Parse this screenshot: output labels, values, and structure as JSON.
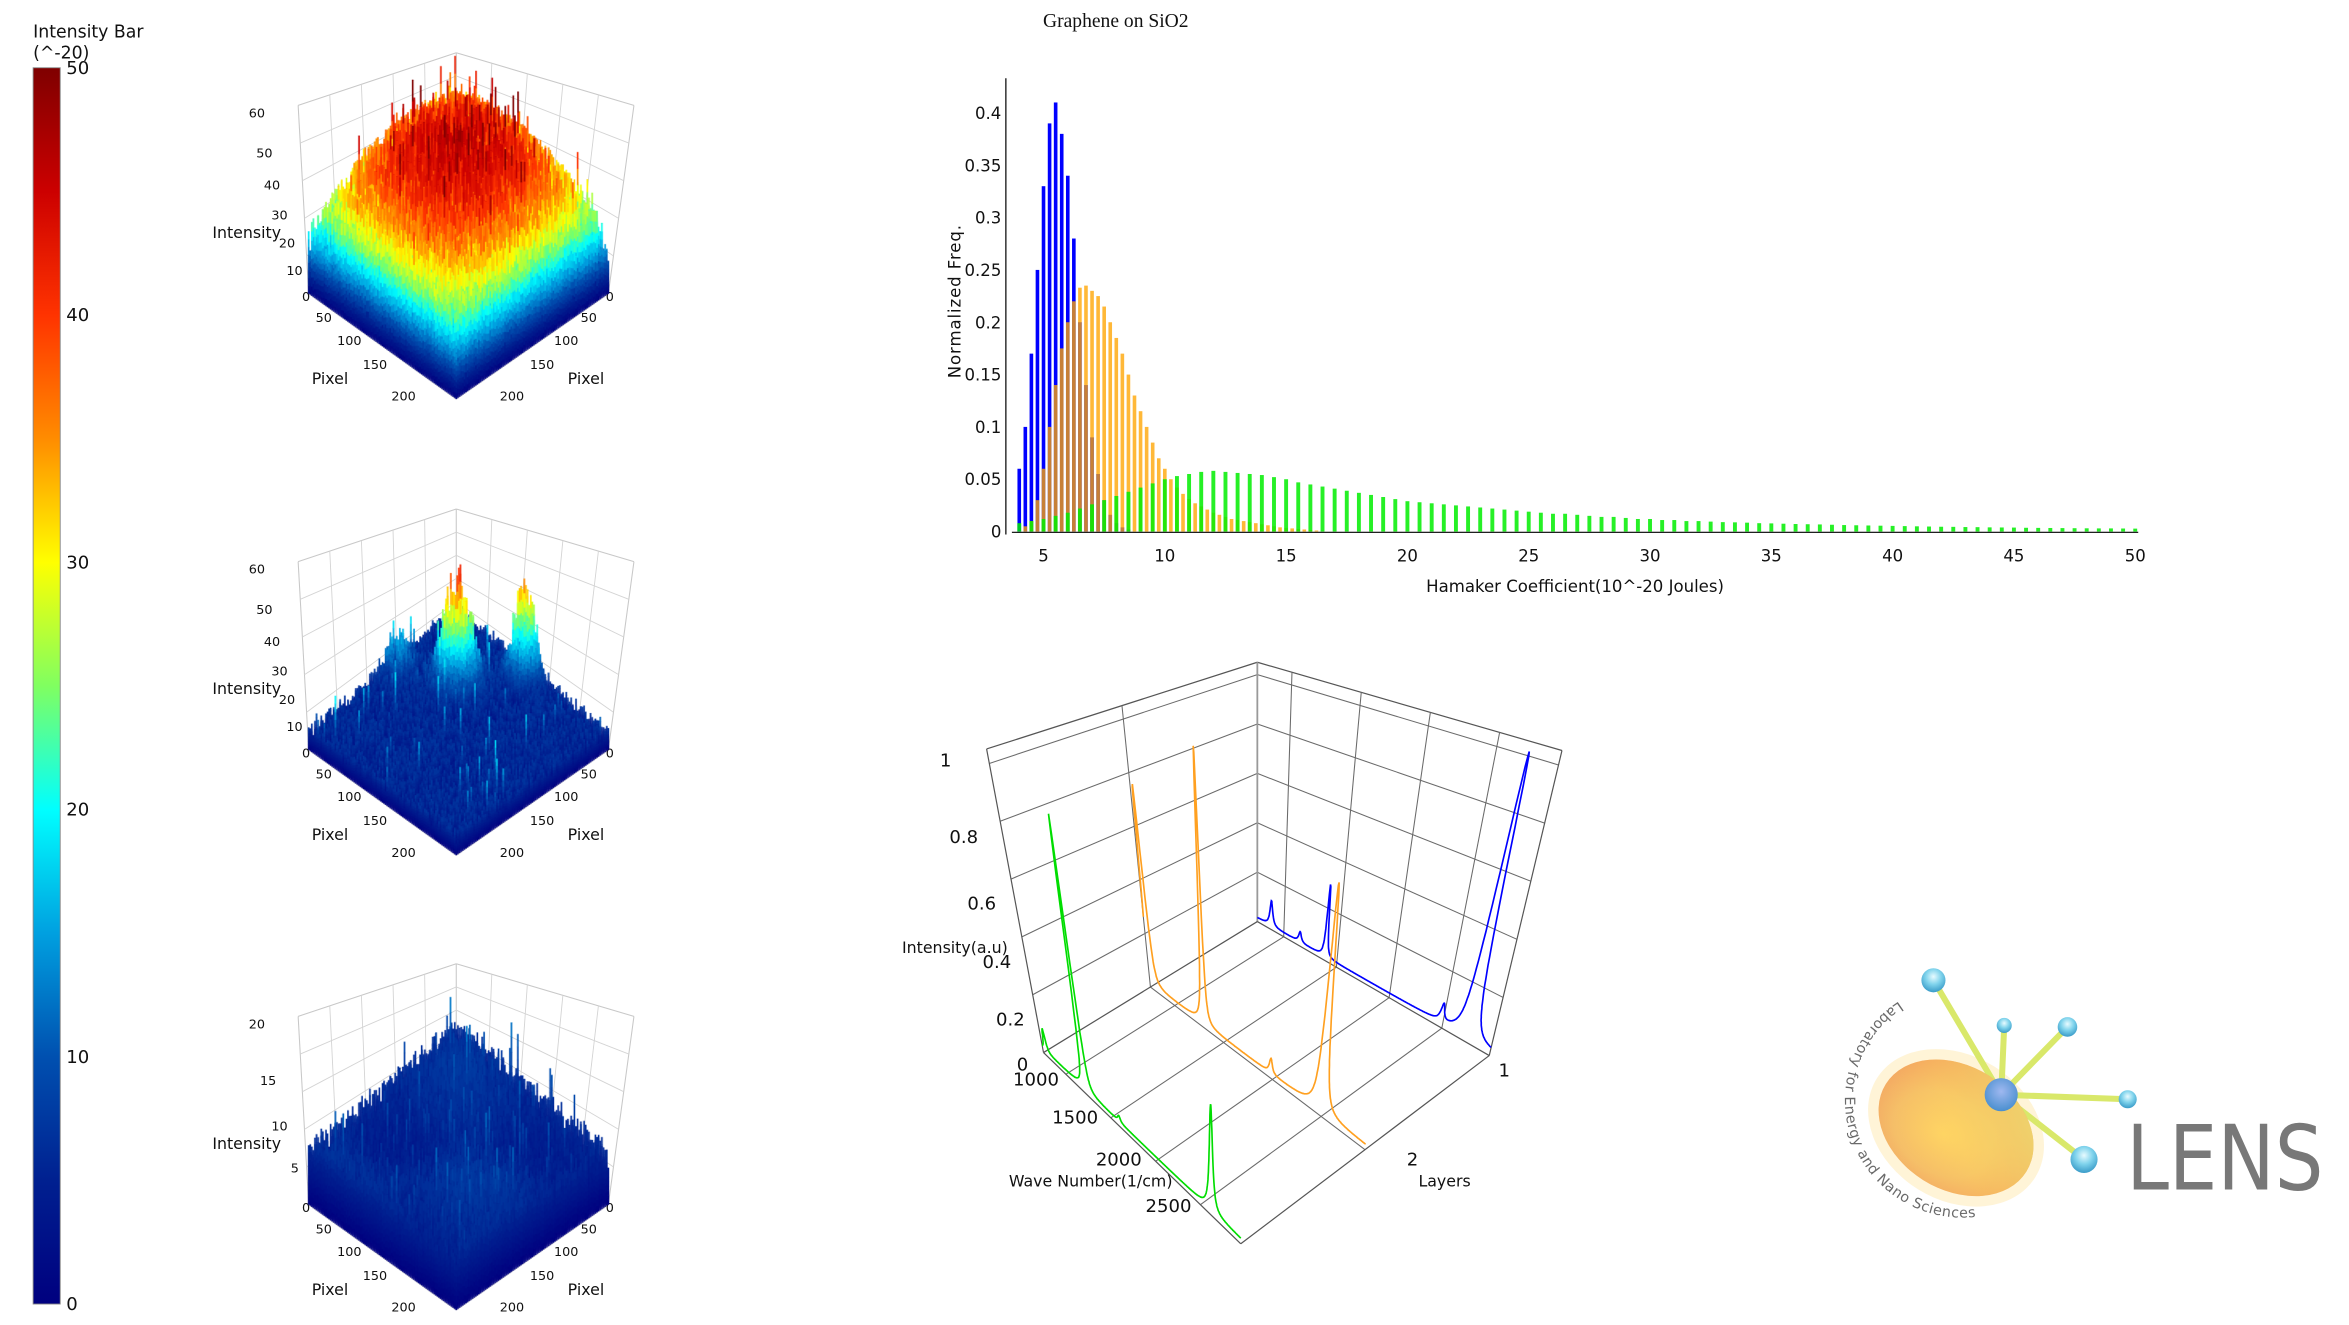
{
  "colorbar": {
    "title_line1": "Intensity Bar",
    "title_line2": "(^-20)",
    "range": [
      0,
      50
    ],
    "ticks": [
      50,
      40,
      30,
      20,
      10,
      0
    ],
    "colors": [
      "#7f0000",
      "#cc0000",
      "#ff3300",
      "#ff8c00",
      "#ffff00",
      "#80ff60",
      "#00ffff",
      "#00a0e0",
      "#0050b0",
      "#002090",
      "#00007f"
    ]
  },
  "surfaces": [
    {
      "z_label": "Intensity",
      "x_label": "Pixel",
      "y_label": "Pixel",
      "z_ticks": [
        "60",
        "50",
        "40",
        "30",
        "20",
        "10",
        "0"
      ],
      "z_max": 60,
      "left_pixel_ticks": [
        "50",
        "100",
        "150",
        "200"
      ],
      "right_pixel_ticks": [
        "0",
        "50",
        "100",
        "150",
        "200"
      ]
    },
    {
      "z_label": "Intensity",
      "x_label": "Pixel",
      "y_label": "Pixel",
      "z_ticks": [
        "60",
        "50",
        "40",
        "30",
        "20",
        "10",
        "0"
      ],
      "z_max": 60,
      "left_pixel_ticks": [
        "50",
        "100",
        "150",
        "200"
      ],
      "right_pixel_ticks": [
        "0",
        "50",
        "100",
        "150",
        "200"
      ]
    },
    {
      "z_label": "Intensity",
      "x_label": "Pixel",
      "y_label": "Pixel",
      "z_ticks": [
        "20",
        "15",
        "10",
        "5",
        "0"
      ],
      "z_max": 20,
      "left_pixel_ticks": [
        "50",
        "100",
        "150",
        "200"
      ],
      "right_pixel_ticks": [
        "0",
        "50",
        "100",
        "150",
        "200"
      ]
    }
  ],
  "chart_data": [
    {
      "type": "bar",
      "title": "Graphene on SiO2",
      "xlabel": "Hamaker Coefficient(10^-20 Joules)",
      "ylabel": "Normalized Freq.",
      "xlim": [
        4,
        50
      ],
      "ylim": [
        0,
        0.43
      ],
      "x_ticks": [
        5,
        10,
        15,
        20,
        25,
        30,
        35,
        40,
        45,
        50
      ],
      "y_ticks": [
        0,
        0.05,
        0.1,
        0.15,
        0.2,
        0.25,
        0.3,
        0.35,
        0.4
      ],
      "grid": false,
      "series": [
        {
          "name": "blue",
          "color": "#0000ff",
          "x_start": 4.0,
          "bin_width": 0.25,
          "values": [
            0.06,
            0.1,
            0.17,
            0.25,
            0.33,
            0.39,
            0.41,
            0.38,
            0.34,
            0.28,
            0.2,
            0.14,
            0.09,
            0.055,
            0.03,
            0.016,
            0.008,
            0.004,
            0.002
          ]
        },
        {
          "name": "orange",
          "color": "#ffa500",
          "x_start": 4.25,
          "bin_width": 0.25,
          "values": [
            0.005,
            0.01,
            0.03,
            0.06,
            0.1,
            0.14,
            0.175,
            0.2,
            0.22,
            0.233,
            0.235,
            0.23,
            0.225,
            0.215,
            0.2,
            0.185,
            0.17,
            0.15,
            0.13,
            0.115,
            0.1,
            0.085,
            0.07,
            0.06,
            0.05,
            0.042,
            0.036,
            0.031,
            0.027,
            0.024,
            0.021,
            0.018,
            0.016,
            0.014,
            0.012,
            0.011,
            0.01,
            0.009,
            0.008,
            0.007,
            0.006,
            0.005,
            0.004,
            0.0035,
            0.003,
            0.0025,
            0.002,
            0.0015,
            0.001
          ]
        },
        {
          "name": "green",
          "color": "#00ee00",
          "x_start": 4.0,
          "bin_width": 0.5,
          "values": [
            0.008,
            0.01,
            0.012,
            0.015,
            0.018,
            0.022,
            0.026,
            0.03,
            0.034,
            0.038,
            0.042,
            0.046,
            0.05,
            0.053,
            0.055,
            0.057,
            0.058,
            0.057,
            0.056,
            0.055,
            0.054,
            0.052,
            0.05,
            0.047,
            0.045,
            0.043,
            0.041,
            0.039,
            0.037,
            0.035,
            0.033,
            0.031,
            0.029,
            0.028,
            0.027,
            0.026,
            0.025,
            0.024,
            0.023,
            0.022,
            0.021,
            0.02,
            0.019,
            0.018,
            0.017,
            0.017,
            0.016,
            0.015,
            0.014,
            0.014,
            0.013,
            0.012,
            0.012,
            0.011,
            0.011,
            0.01,
            0.01,
            0.0095,
            0.009,
            0.0088,
            0.0085,
            0.008,
            0.0078,
            0.0075,
            0.0072,
            0.007,
            0.0068,
            0.0065,
            0.0062,
            0.006,
            0.0058,
            0.0056,
            0.0054,
            0.0052,
            0.005,
            0.0048,
            0.0046,
            0.0045,
            0.0043,
            0.0042,
            0.004,
            0.0039,
            0.0038,
            0.0036,
            0.0035,
            0.0034,
            0.0033,
            0.0032,
            0.0031,
            0.003,
            0.003,
            0.0029,
            0.0028
          ]
        }
      ]
    },
    {
      "type": "line",
      "projection": "3d",
      "xlabel": "Wave Number(1/cm)",
      "ylabel": "Layers",
      "zlabel": "Intensity(a.u)",
      "x_range": [
        750,
        2950
      ],
      "layer_range": [
        1,
        3
      ],
      "z_range": [
        0,
        1.05
      ],
      "x_ticks": [
        1000,
        1500,
        2000,
        2500
      ],
      "layer_ticks": [
        "1",
        "2"
      ],
      "z_ticks": [
        "1",
        "0.8",
        "0.6",
        "0.4",
        "0.2",
        "0"
      ],
      "series": [
        {
          "layer": 1,
          "color": "#0000ff",
          "baseline": 0.015,
          "peaks": [
            {
              "center": 880,
              "height": 0.1,
              "width": 15
            },
            {
              "center": 1150,
              "height": 0.04,
              "width": 15
            },
            {
              "center": 1390,
              "height": 0.28,
              "width": 10
            },
            {
              "center": 2480,
              "height": 0.06,
              "width": 18
            },
            {
              "center": 2730,
              "height": 1.0,
              "width": 25
            }
          ]
        },
        {
          "layer": 2,
          "color": "#ffa020",
          "baseline": 0.015,
          "peaks": [
            {
              "center": 770,
              "height": 0.75,
              "width": 14
            },
            {
              "center": 1300,
              "height": 1.0,
              "width": 11
            },
            {
              "center": 1980,
              "height": 0.05,
              "width": 18
            },
            {
              "center": 2490,
              "height": 0.75,
              "width": 25
            }
          ]
        },
        {
          "layer": 3,
          "color": "#00dd00",
          "baseline": 0.015,
          "peaks": [
            {
              "center": 790,
              "height": 0.08,
              "width": 14
            },
            {
              "center": 1230,
              "height": 0.92,
              "width": 11
            },
            {
              "center": 1600,
              "height": 0.02,
              "width": 18
            },
            {
              "center": 2620,
              "height": 0.32,
              "width": 20
            }
          ]
        }
      ]
    }
  ],
  "logo": {
    "name": "LENS",
    "tagline": "Laboratory for Energy and Nano Sciences"
  }
}
